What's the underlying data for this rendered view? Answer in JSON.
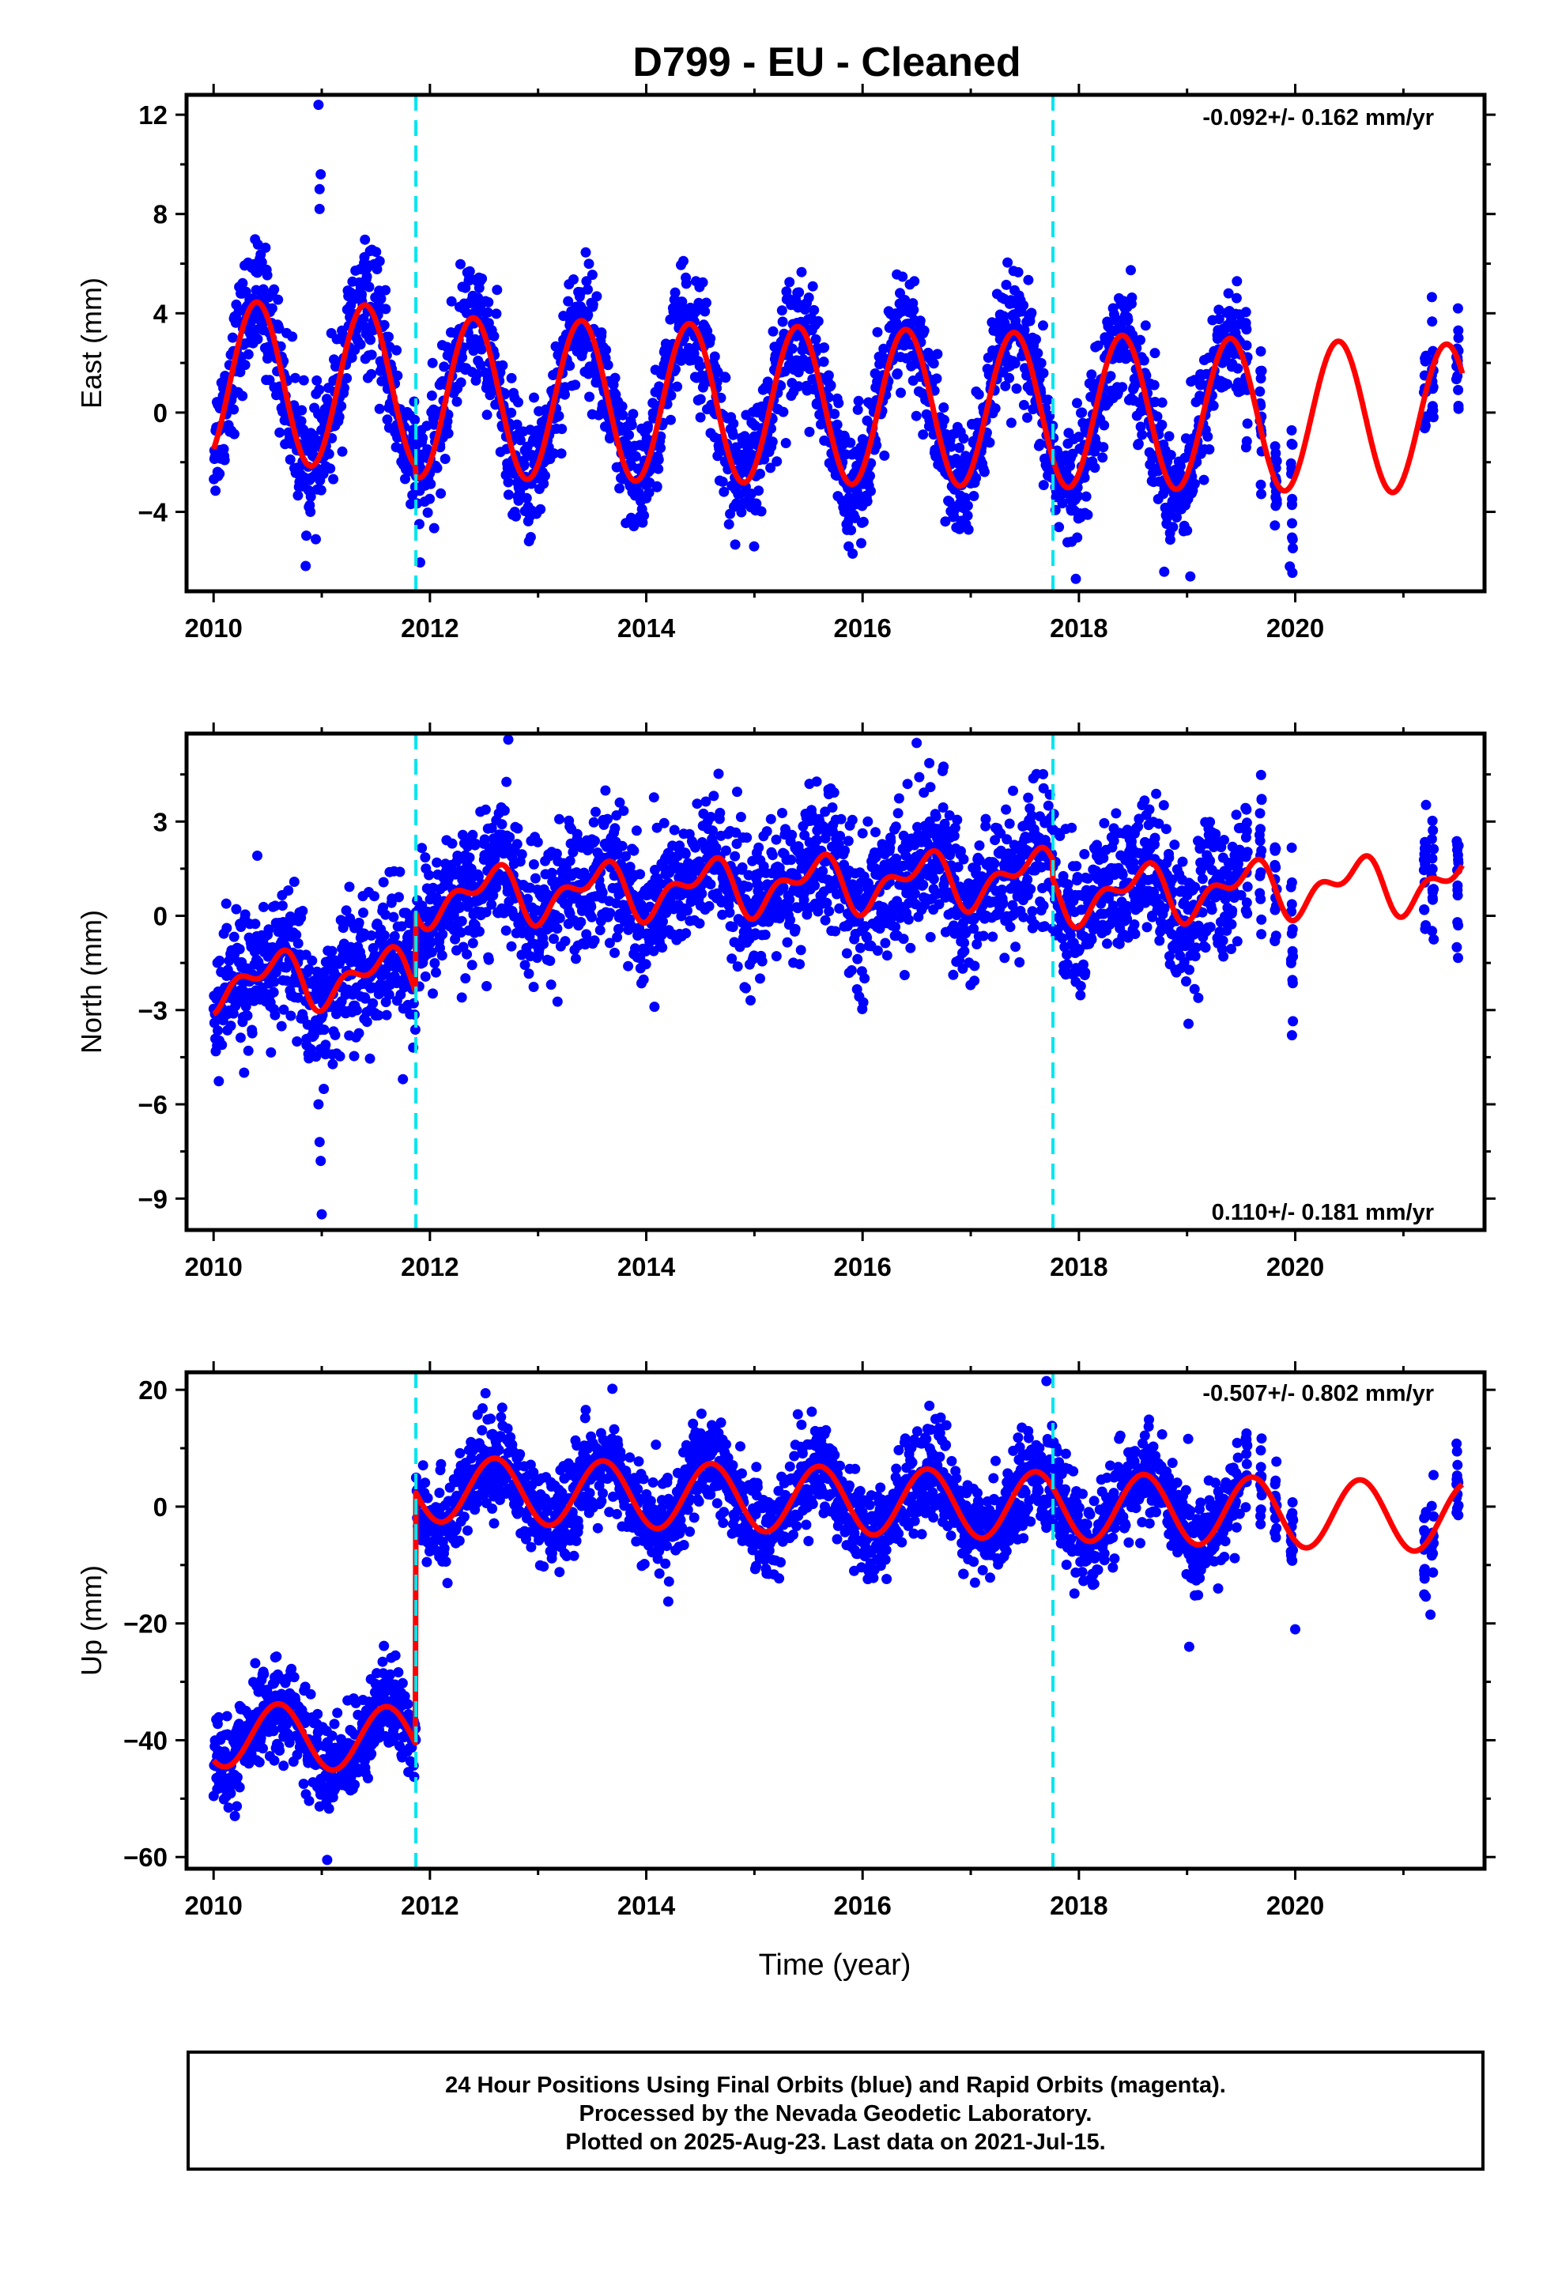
{
  "title": "D799  - EU - Cleaned",
  "xlabel": "Time (year)",
  "footer": {
    "line1": "24 Hour Positions Using Final Orbits (blue) and Rapid Orbits (magenta).",
    "line2": "Processed by the Nevada Geodetic Laboratory.",
    "line3": "Plotted on 2025-Aug-23. Last data on 2021-Jul-15."
  },
  "colors": {
    "data": "#0000ff",
    "model": "#ff0000",
    "steps": "#00e5ee"
  },
  "chart_data": [
    {
      "type": "scatter",
      "name": "east",
      "ylabel": "East (mm)",
      "rate_text": "-0.092+/- 0.162 mm/yr",
      "xlim": [
        2009.75,
        2021.75
      ],
      "ylim": [
        -7.2,
        12.8
      ],
      "yticks": [
        -4,
        0,
        4,
        8,
        12
      ],
      "yticklabels": [
        "−4",
        "0",
        "4",
        "8",
        "12"
      ],
      "xticks": [
        2010,
        2012,
        2014,
        2016,
        2018,
        2020
      ],
      "xticklabels": [
        "2010",
        "2012",
        "2014",
        "2016",
        "2018",
        "2020"
      ],
      "offsets": [
        2011.87,
        2017.76
      ],
      "model": {
        "offset": 1.2,
        "trend": -0.092,
        "amp": 3.3,
        "amp_end": 3.0,
        "phase_peak": 0.4,
        "steps": [
          [
            2011.87,
            -0.4
          ]
        ]
      },
      "scatter": {
        "noise": 1.2,
        "outliers": [
          [
            2010.98,
            8.2
          ],
          [
            2010.98,
            9.0
          ],
          [
            2010.99,
            9.6
          ],
          [
            2010.97,
            12.4
          ],
          [
            2019.95,
            -6.2
          ],
          [
            2019.03,
            -6.6
          ]
        ]
      },
      "data_extent": [
        [
          2010.0,
          2019.5
        ],
        [
          2019.5,
          2020.02
        ],
        [
          2021.17,
          2021.55
        ]
      ]
    },
    {
      "type": "scatter",
      "name": "north",
      "ylabel": "North (mm)",
      "rate_text": "0.110+/- 0.181 mm/yr",
      "xlim": [
        2009.75,
        2021.75
      ],
      "ylim": [
        -10,
        5.8
      ],
      "yticks": [
        -9,
        -6,
        -3,
        0,
        3
      ],
      "yticklabels": [
        "−9",
        "−6",
        "−3",
        "0",
        "3"
      ],
      "xticks": [
        2010,
        2012,
        2014,
        2016,
        2018,
        2020
      ],
      "xticklabels": [
        "2010",
        "2012",
        "2014",
        "2016",
        "2018",
        "2020"
      ],
      "offsets": [
        2011.87,
        2017.76
      ],
      "model": {
        "offset": -2.1,
        "trend": 0.11,
        "amp": 0.7,
        "amp_end": 0.7,
        "phase_peak": 0.55,
        "steps": [
          [
            2011.87,
            2.5
          ],
          [
            2017.76,
            -0.6
          ]
        ]
      },
      "scatter": {
        "noise": 1.1,
        "outliers": [
          [
            2010.97,
            -6.0
          ],
          [
            2010.98,
            -7.2
          ],
          [
            2010.99,
            -7.8
          ],
          [
            2011.0,
            -9.5
          ],
          [
            2016.5,
            5.5
          ],
          [
            2011.75,
            -5.2
          ],
          [
            2019.97,
            -3.8
          ]
        ]
      },
      "data_extent": [
        [
          2010.0,
          2019.5
        ],
        [
          2019.5,
          2020.02
        ],
        [
          2021.17,
          2021.55
        ]
      ]
    },
    {
      "type": "scatter",
      "name": "up",
      "ylabel": "Up (mm)",
      "rate_text": "-0.507+/- 0.802 mm/yr",
      "xlim": [
        2009.75,
        2021.75
      ],
      "ylim": [
        -62,
        23
      ],
      "yticks": [
        -60,
        -40,
        -20,
        0,
        20
      ],
      "yticklabels": [
        "−60",
        "−40",
        "−20",
        "0",
        "20"
      ],
      "xticks": [
        2010,
        2012,
        2014,
        2016,
        2018,
        2020
      ],
      "xticklabels": [
        "2010",
        "2012",
        "2014",
        "2016",
        "2018",
        "2020"
      ],
      "offsets": [
        2011.87,
        2017.76
      ],
      "model": {
        "offset": -39,
        "trend": -0.507,
        "amp": 5.5,
        "amp_end": 6.0,
        "phase_peak": 0.6,
        "steps": [
          [
            2011.87,
            43.0
          ]
        ]
      },
      "scatter": {
        "noise": 4.0,
        "outliers": [
          [
            2017.7,
            21.5
          ],
          [
            2019.02,
            -24.0
          ],
          [
            2020.0,
            -21.0
          ],
          [
            2011.05,
            -60.5
          ],
          [
            2021.25,
            -18.5
          ]
        ]
      },
      "data_extent": [
        [
          2010.0,
          2019.5
        ],
        [
          2019.5,
          2020.02
        ],
        [
          2021.17,
          2021.55
        ]
      ]
    }
  ]
}
